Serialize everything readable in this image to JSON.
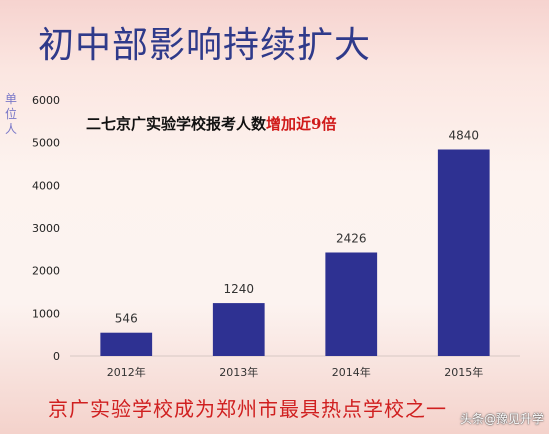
{
  "header": {
    "title": "初中部影响持续扩大"
  },
  "unit_label": [
    "单",
    "位",
    "人"
  ],
  "subtitle": {
    "main": "二七京广实验学校报考人数",
    "highlight": "增加近9倍"
  },
  "footer": {
    "caption": "京广实验学校成为郑州市最具热点学校之一"
  },
  "watermark": "头条@豫见升学",
  "colors": {
    "bar": "#2e3192",
    "title": "#2f3a8a",
    "highlight": "#d01a1a",
    "footer": "#d02020"
  },
  "chart_data": {
    "type": "bar",
    "categories": [
      "2012年",
      "2013年",
      "2014年",
      "2015年"
    ],
    "values": [
      546,
      1240,
      2426,
      4840
    ],
    "ylim": [
      0,
      6000
    ],
    "yticks": [
      0,
      1000,
      2000,
      3000,
      4000,
      5000,
      6000
    ],
    "grid": false
  }
}
